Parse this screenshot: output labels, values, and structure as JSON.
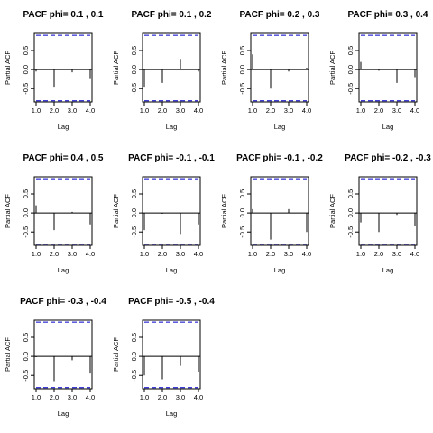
{
  "chart_data": [
    {
      "type": "bar",
      "title": "PACF phi= 0.1 , 0.1",
      "xlabel": "Lag",
      "ylabel": "Partial ACF",
      "x": [
        1,
        2,
        3,
        4
      ],
      "values": [
        -0.05,
        -0.45,
        -0.07,
        -0.25
      ],
      "xlim": [
        0.9,
        4.1
      ],
      "ylim": [
        -0.85,
        0.95
      ],
      "x_ticks": [
        "1.0",
        "2.0",
        "3.0",
        "4.0"
      ],
      "y_ticks": [
        "-0.5",
        "0.0",
        "0.5"
      ],
      "ci_upper": 0.9,
      "ci_lower": -0.82,
      "ci_color": "#0000cc",
      "grid": false
    },
    {
      "type": "bar",
      "title": "PACF phi= 0.1 , 0.2",
      "xlabel": "Lag",
      "ylabel": "Partial ACF",
      "x": [
        1,
        2,
        3,
        4
      ],
      "values": [
        -0.45,
        -0.35,
        0.28,
        -0.05
      ],
      "xlim": [
        0.9,
        4.1
      ],
      "ylim": [
        -0.85,
        0.95
      ],
      "x_ticks": [
        "1.0",
        "2.0",
        "3.0",
        "4.0"
      ],
      "y_ticks": [
        "-0.5",
        "0.0",
        "0.5"
      ],
      "ci_upper": 0.9,
      "ci_lower": -0.82,
      "ci_color": "#0000cc",
      "grid": false
    },
    {
      "type": "bar",
      "title": "PACF phi= 0.2 , 0.3",
      "xlabel": "Lag",
      "ylabel": "Partial ACF",
      "x": [
        1,
        2,
        3,
        4
      ],
      "values": [
        0.4,
        -0.5,
        -0.05,
        0.05
      ],
      "xlim": [
        0.9,
        4.1
      ],
      "ylim": [
        -0.85,
        0.95
      ],
      "x_ticks": [
        "1.0",
        "2.0",
        "3.0",
        "4.0"
      ],
      "y_ticks": [
        "-0.5",
        "0.0",
        "0.5"
      ],
      "ci_upper": 0.9,
      "ci_lower": -0.82,
      "ci_color": "#0000cc",
      "grid": false
    },
    {
      "type": "bar",
      "title": "PACF phi= 0.3 , 0.4",
      "xlabel": "Lag",
      "ylabel": "Partial ACF",
      "x": [
        1,
        2,
        3,
        4
      ],
      "values": [
        0.2,
        -0.03,
        -0.35,
        -0.2
      ],
      "xlim": [
        0.9,
        4.1
      ],
      "ylim": [
        -0.85,
        0.95
      ],
      "x_ticks": [
        "1.0",
        "2.0",
        "3.0",
        "4.0"
      ],
      "y_ticks": [
        "-0.5",
        "0.0",
        "0.5"
      ],
      "ci_upper": 0.9,
      "ci_lower": -0.82,
      "ci_color": "#0000cc",
      "grid": false
    },
    {
      "type": "bar",
      "title": "PACF phi= 0.4 , 0.5",
      "xlabel": "Lag",
      "ylabel": "Partial ACF",
      "x": [
        1,
        2,
        3,
        4
      ],
      "values": [
        0.2,
        -0.45,
        0.03,
        -0.3
      ],
      "xlim": [
        0.9,
        4.1
      ],
      "ylim": [
        -0.85,
        0.95
      ],
      "x_ticks": [
        "1.0",
        "2.0",
        "3.0",
        "4.0"
      ],
      "y_ticks": [
        "-0.5",
        "0.0",
        "0.5"
      ],
      "ci_upper": 0.9,
      "ci_lower": -0.82,
      "ci_color": "#0000cc",
      "grid": false
    },
    {
      "type": "bar",
      "title": "PACF phi= -0.1 , -0.1",
      "xlabel": "Lag",
      "ylabel": "Partial ACF",
      "x": [
        1,
        2,
        3,
        4
      ],
      "values": [
        -0.45,
        -0.02,
        -0.55,
        -0.3
      ],
      "xlim": [
        0.9,
        4.1
      ],
      "ylim": [
        -0.85,
        0.95
      ],
      "x_ticks": [
        "1.0",
        "2.0",
        "3.0",
        "4.0"
      ],
      "y_ticks": [
        "-0.5",
        "0.0",
        "0.5"
      ],
      "ci_upper": 0.9,
      "ci_lower": -0.82,
      "ci_color": "#0000cc",
      "grid": false
    },
    {
      "type": "bar",
      "title": "PACF phi= -0.1 , -0.2",
      "xlabel": "Lag",
      "ylabel": "Partial ACF",
      "x": [
        1,
        2,
        3,
        4
      ],
      "values": [
        0.1,
        -0.7,
        0.1,
        -0.5
      ],
      "xlim": [
        0.9,
        4.1
      ],
      "ylim": [
        -0.85,
        0.95
      ],
      "x_ticks": [
        "1.0",
        "2.0",
        "3.0",
        "4.0"
      ],
      "y_ticks": [
        "-0.5",
        "0.0",
        "0.5"
      ],
      "ci_upper": 0.9,
      "ci_lower": -0.82,
      "ci_color": "#0000cc",
      "grid": false
    },
    {
      "type": "bar",
      "title": "PACF phi= -0.2 , -0.3",
      "xlabel": "Lag",
      "ylabel": "Partial ACF",
      "x": [
        1,
        2,
        3,
        4
      ],
      "values": [
        -0.25,
        -0.5,
        -0.05,
        -0.35
      ],
      "xlim": [
        0.9,
        4.1
      ],
      "ylim": [
        -0.85,
        0.95
      ],
      "x_ticks": [
        "1.0",
        "2.0",
        "3.0",
        "4.0"
      ],
      "y_ticks": [
        "-0.5",
        "0.0",
        "0.5"
      ],
      "ci_upper": 0.9,
      "ci_lower": -0.82,
      "ci_color": "#0000cc",
      "grid": false
    },
    {
      "type": "bar",
      "title": "PACF phi= -0.3 , -0.4",
      "xlabel": "Lag",
      "ylabel": "Partial ACF",
      "x": [
        1,
        2,
        3,
        4
      ],
      "values": [
        -0.02,
        -0.65,
        -0.1,
        -0.45
      ],
      "xlim": [
        0.9,
        4.1
      ],
      "ylim": [
        -0.85,
        0.95
      ],
      "x_ticks": [
        "1.0",
        "2.0",
        "3.0",
        "4.0"
      ],
      "y_ticks": [
        "-0.5",
        "0.0",
        "0.5"
      ],
      "ci_upper": 0.9,
      "ci_lower": -0.82,
      "ci_color": "#0000cc",
      "grid": false
    },
    {
      "type": "bar",
      "title": "PACF phi= -0.5 , -0.4",
      "xlabel": "Lag",
      "ylabel": "Partial ACF",
      "x": [
        1,
        2,
        3,
        4
      ],
      "values": [
        -0.5,
        -0.6,
        -0.25,
        -0.4
      ],
      "xlim": [
        0.9,
        4.1
      ],
      "ylim": [
        -0.85,
        0.95
      ],
      "x_ticks": [
        "1.0",
        "2.0",
        "3.0",
        "4.0"
      ],
      "y_ticks": [
        "-0.5",
        "0.0",
        "0.5"
      ],
      "ci_upper": 0.9,
      "ci_lower": -0.82,
      "ci_color": "#0000cc",
      "grid": false
    }
  ]
}
